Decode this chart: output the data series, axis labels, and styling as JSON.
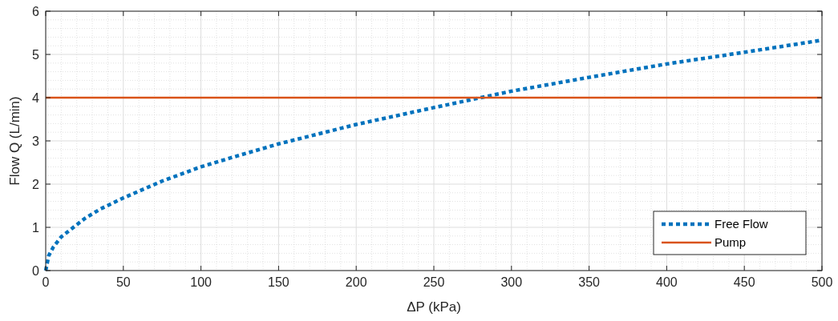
{
  "chart_data": {
    "type": "line",
    "xlabel": "ΔP (kPa)",
    "ylabel": "Flow Q (L/min)",
    "xlim": [
      0,
      500
    ],
    "xticks": [
      0,
      50,
      100,
      150,
      200,
      250,
      300,
      350,
      400,
      450,
      500
    ],
    "ylim": [
      0,
      6
    ],
    "yticks": [
      0,
      1,
      2,
      3,
      4,
      5,
      6
    ],
    "grid": true,
    "legend": "bottom right",
    "series": [
      {
        "name": "Free Flow",
        "color": "#0072bd",
        "line_style": "dotted",
        "x": [
          0,
          2,
          5,
          10,
          15,
          25,
          35,
          50,
          75,
          100,
          125,
          150,
          200,
          250,
          300,
          350,
          400,
          450,
          500
        ],
        "values": [
          0,
          0.35,
          0.55,
          0.78,
          0.92,
          1.2,
          1.42,
          1.68,
          2.07,
          2.4,
          2.67,
          2.93,
          3.38,
          3.77,
          4.15,
          4.47,
          4.78,
          5.05,
          5.33
        ]
      },
      {
        "name": "Pump",
        "color": "#d95319",
        "line_style": "solid",
        "x": [
          0,
          500
        ],
        "values": [
          4,
          4
        ]
      }
    ]
  }
}
